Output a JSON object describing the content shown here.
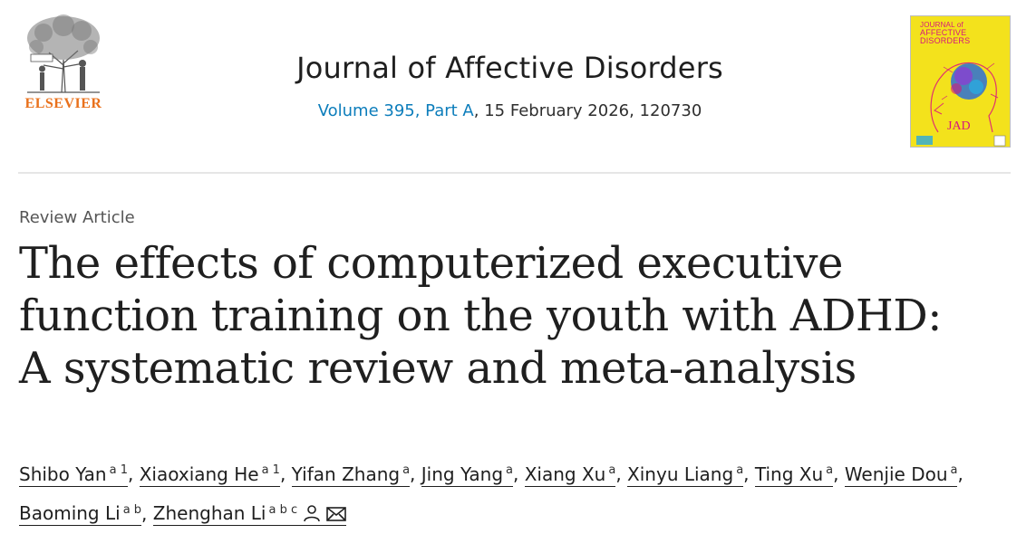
{
  "publisher": {
    "name": "ELSEVIER"
  },
  "journal": {
    "title": "Journal of Affective Disorders",
    "issue_link": "Volume 395, Part A",
    "issue_rest": ", 15 February 2026, 120730",
    "cover_line1": "JOURNAL of",
    "cover_line2": "AFFECTIVE DISORDERS",
    "cover_badge": "JAD"
  },
  "article": {
    "type": "Review Article",
    "title_lines": [
      "The effects of computerized executive",
      "function training on the youth with ADHD:",
      "A systematic review and meta-analysis"
    ]
  },
  "authors": [
    {
      "name": "Shibo Yan",
      "sup": "a 1"
    },
    {
      "name": "Xiaoxiang He",
      "sup": "a 1"
    },
    {
      "name": "Yifan Zhang",
      "sup": "a"
    },
    {
      "name": "Jing Yang",
      "sup": "a"
    },
    {
      "name": "Xiang Xu",
      "sup": "a"
    },
    {
      "name": "Xinyu Liang",
      "sup": "a"
    },
    {
      "name": "Ting Xu",
      "sup": "a"
    },
    {
      "name": "Wenjie Dou",
      "sup": "a"
    },
    {
      "name": "Baoming Li",
      "sup": "a b"
    },
    {
      "name": "Zhenghan Li",
      "sup": "a b c"
    }
  ],
  "colors": {
    "accent": "#0c7dbb",
    "publisher": "#e9711c",
    "cover": "#f3e21c"
  },
  "icons": [
    "elsevier-tree-logo",
    "person-icon",
    "envelope-icon"
  ]
}
